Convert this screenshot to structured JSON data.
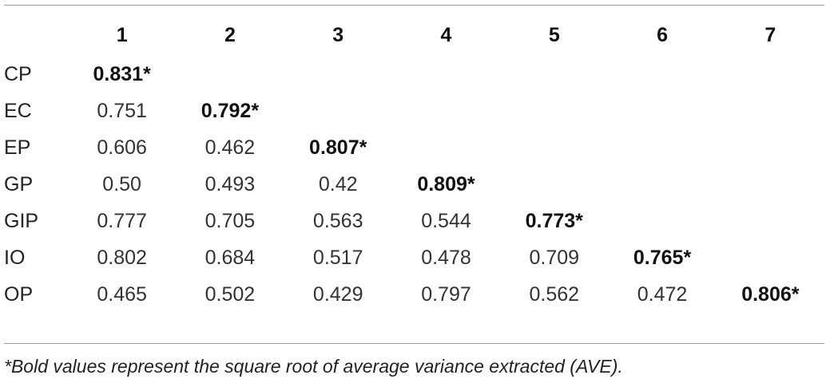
{
  "table": {
    "column_headers": [
      "1",
      "2",
      "3",
      "4",
      "5",
      "6",
      "7"
    ],
    "rows": [
      {
        "label": "CP",
        "values": [
          "0.831*"
        ]
      },
      {
        "label": "EC",
        "values": [
          "0.751",
          "0.792*"
        ]
      },
      {
        "label": "EP",
        "values": [
          "0.606",
          "0.462",
          "0.807*"
        ]
      },
      {
        "label": "GP",
        "values": [
          "0.50",
          "0.493",
          "0.42",
          "0.809*"
        ]
      },
      {
        "label": "GIP",
        "values": [
          "0.777",
          "0.705",
          "0.563",
          "0.544",
          "0.773*"
        ]
      },
      {
        "label": "IO",
        "values": [
          "0.802",
          "0.684",
          "0.517",
          "0.478",
          "0.709",
          "0.765*"
        ]
      },
      {
        "label": "OP",
        "values": [
          "0.465",
          "0.502",
          "0.429",
          "0.797",
          "0.562",
          "0.472",
          "0.806*"
        ]
      }
    ]
  },
  "footnote": "*Bold values represent the square root of average variance extracted (AVE)."
}
